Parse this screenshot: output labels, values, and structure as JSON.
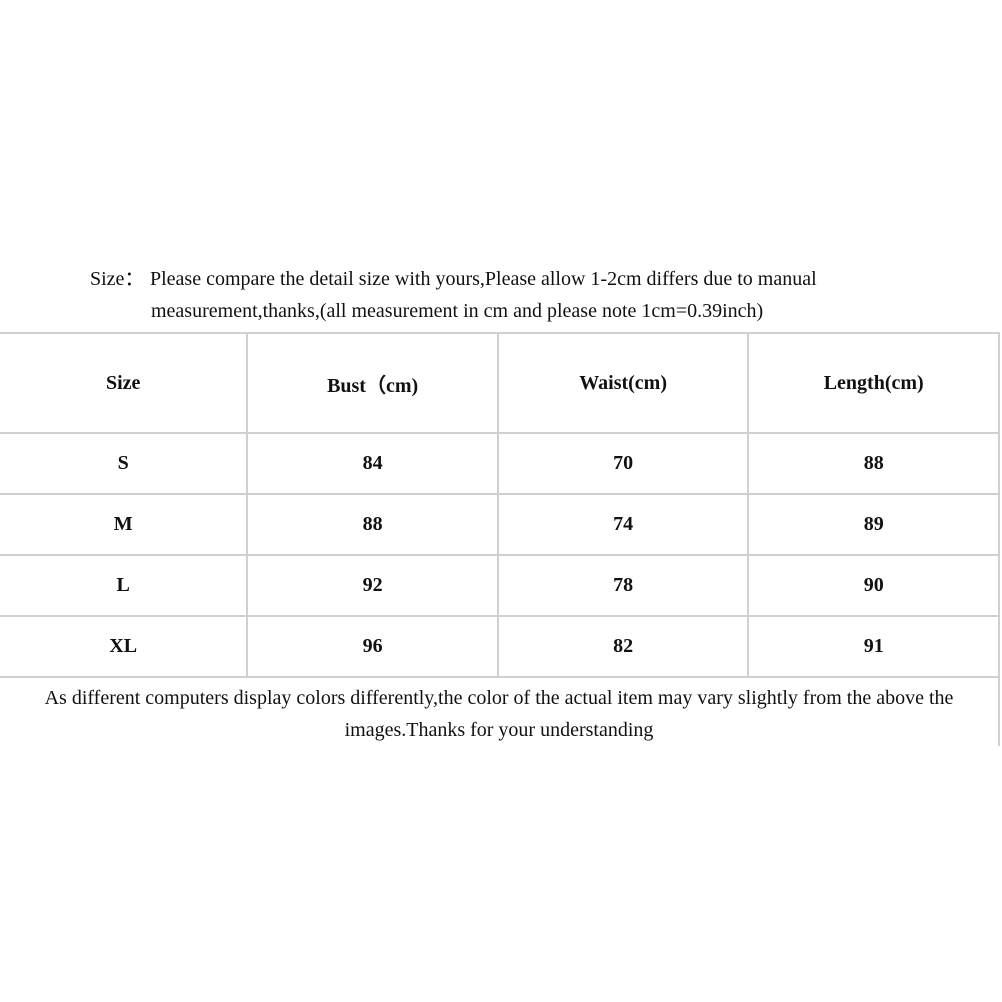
{
  "intro": {
    "label": "Size：",
    "line1": "Please compare the detail size with yours,Please allow 1-2cm differs due to manual",
    "line2": "measurement,thanks,(all measurement in cm and please note 1cm=0.39inch)"
  },
  "table": {
    "headers": [
      "Size",
      "Bust（cm)",
      "Waist(cm)",
      "Length(cm)"
    ],
    "rows": [
      [
        "S",
        "84",
        "70",
        "88"
      ],
      [
        "M",
        "88",
        "74",
        "89"
      ],
      [
        "L",
        "92",
        "78",
        "90"
      ],
      [
        "XL",
        "96",
        "82",
        "91"
      ]
    ]
  },
  "footer_note": "As different computers display colors differently,the color of the actual item may vary slightly from the above the images.Thanks for your understanding"
}
